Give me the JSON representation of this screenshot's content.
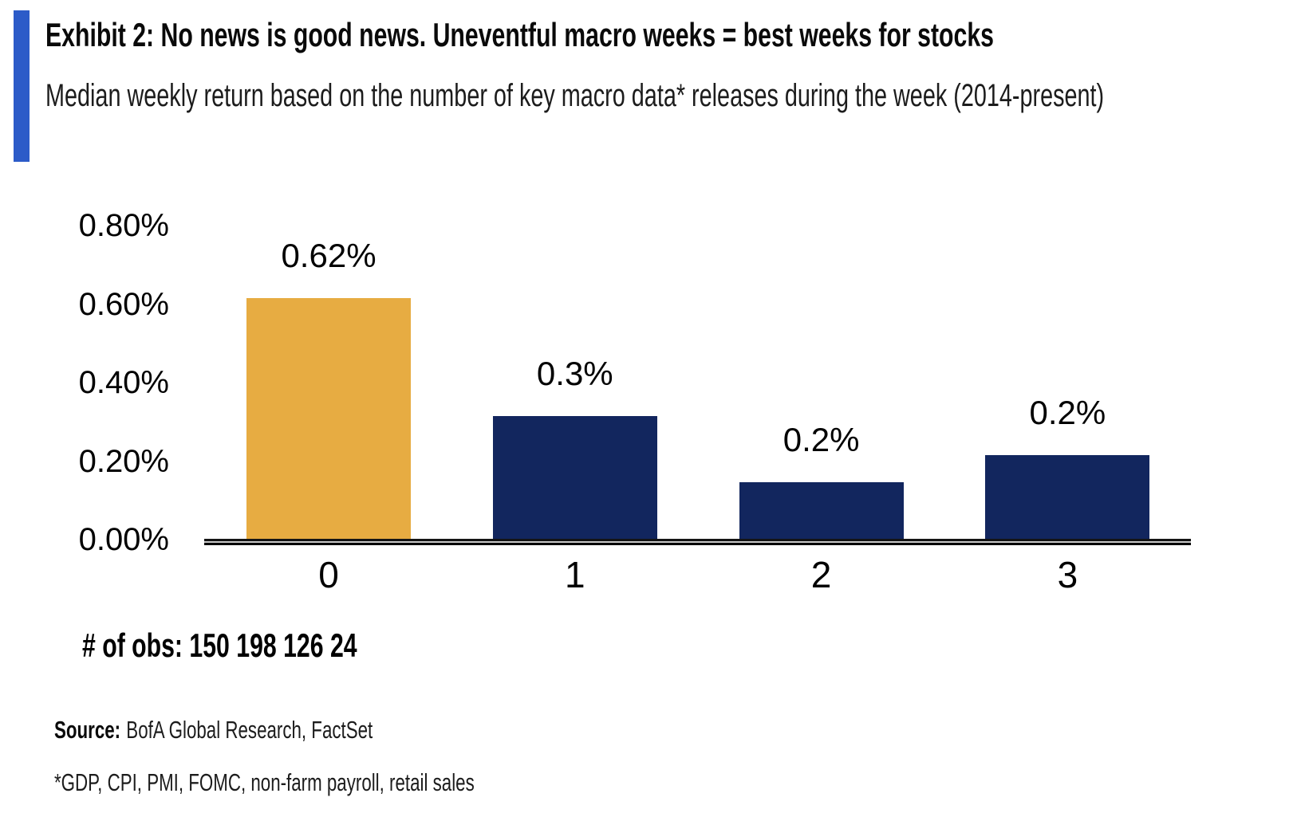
{
  "chart_data": {
    "type": "bar",
    "title": "Exhibit 2: No news is good news. Uneventful macro weeks = best weeks for stocks",
    "subtitle": "Median weekly return based on the number of key macro data* releases during the week (2014-present)",
    "categories": [
      "0",
      "1",
      "2",
      "3"
    ],
    "values_pct": [
      0.62,
      0.32,
      0.15,
      0.22
    ],
    "value_labels": [
      "0.62%",
      "0.3%",
      "0.2%",
      "0.2%"
    ],
    "observations_note": "# of obs: 150 198 126 24",
    "observations": [
      150,
      198,
      126,
      24
    ],
    "xlabel": "",
    "ylabel": "",
    "ylim": [
      0,
      0.8
    ],
    "yticks_pct": [
      0,
      0.2,
      0.4,
      0.6,
      0.8
    ],
    "ytick_labels": [
      "0.00%",
      "0.20%",
      "0.40%",
      "0.60%",
      "0.80%"
    ],
    "grid": false,
    "legend": false,
    "bar_colors": [
      "#E7AC42",
      "#12265E",
      "#12265E",
      "#12265E"
    ],
    "highlight_index": 0
  },
  "footer": {
    "source_label": "Source:",
    "source_text": "BofA Global Research, FactSet",
    "footnote": "*GDP, CPI, PMI, FOMC, non-farm payroll, retail sales"
  },
  "colors": {
    "accent_bar": "#2C5BC8",
    "highlight_gold": "#E7AC42",
    "navy": "#12265E"
  }
}
